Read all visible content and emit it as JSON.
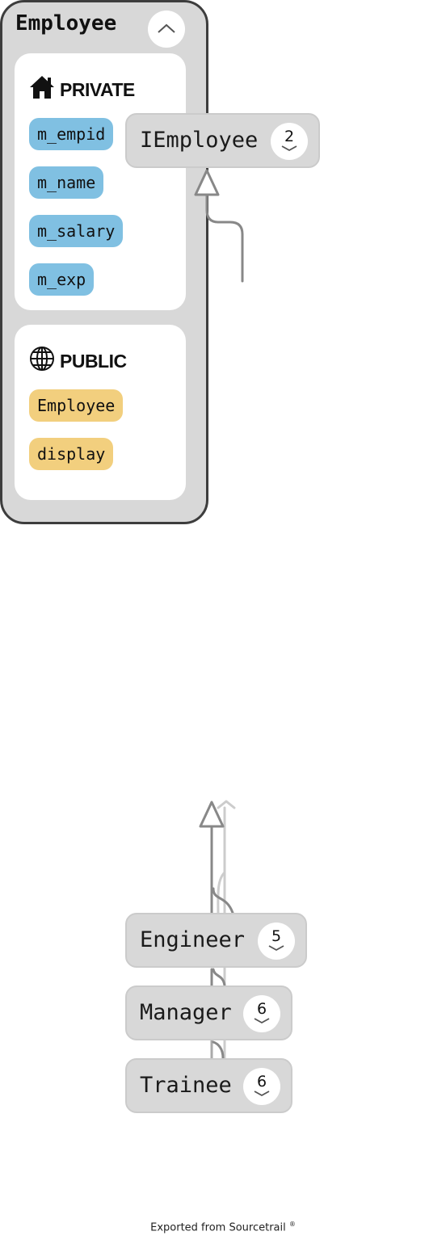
{
  "colors": {
    "node_fill": "#d8d8d8",
    "active_node_border": "#3d3d3d",
    "field_fill": "#80c0e2",
    "method_fill": "#f2cf7e",
    "edge": "#888888",
    "edge_faded": "#cccccc"
  },
  "nodes": {
    "iemployee": {
      "name": "IEmployee",
      "count": "2"
    },
    "employee": {
      "name": "Employee",
      "groups": {
        "private": {
          "label": "PRIVATE",
          "icon": "home-icon",
          "members": [
            "m_empid",
            "m_name",
            "m_salary",
            "m_exp"
          ]
        },
        "public": {
          "label": "PUBLIC",
          "icon": "globe-icon",
          "members": [
            "Employee",
            "display"
          ]
        }
      }
    },
    "engineer": {
      "name": "Engineer",
      "count": "5"
    },
    "manager": {
      "name": "Manager",
      "count": "6"
    },
    "trainee": {
      "name": "Trainee",
      "count": "6"
    }
  },
  "footer": {
    "text": "Exported from Sourcetrail",
    "mark": "®"
  }
}
